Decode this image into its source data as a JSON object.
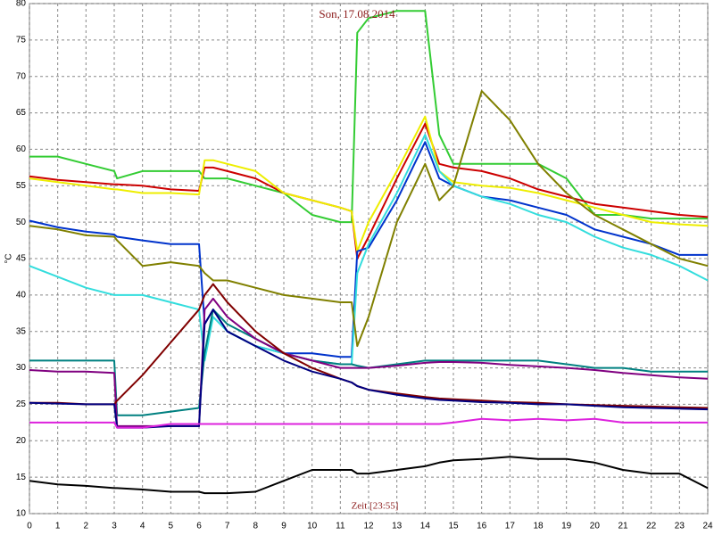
{
  "chart_data": {
    "type": "line",
    "title": "Son, 17.08.2014",
    "x_label": "Zeit [23:55]",
    "y_label": "°C",
    "grid": true,
    "xlim": [
      0,
      24
    ],
    "xticks": [
      0,
      1,
      2,
      3,
      4,
      5,
      6,
      7,
      8,
      9,
      10,
      11,
      12,
      13,
      14,
      15,
      16,
      17,
      18,
      19,
      20,
      21,
      22,
      23,
      24
    ],
    "ylim": [
      10,
      80
    ],
    "yticks": [
      10,
      15,
      20,
      25,
      30,
      35,
      40,
      45,
      50,
      55,
      60,
      65,
      70,
      75,
      80
    ],
    "x": [
      0,
      1,
      2,
      3,
      3.1,
      4,
      5,
      6,
      6.2,
      6.5,
      7,
      8,
      9,
      10,
      11,
      11.4,
      11.6,
      12,
      13,
      14,
      14.5,
      15,
      16,
      17,
      18,
      19,
      20,
      21,
      22,
      23,
      24
    ],
    "series": [
      {
        "color": "#33cc33",
        "values": [
          59,
          59,
          58,
          57,
          56,
          57,
          57,
          57,
          56,
          56,
          56,
          55,
          54,
          51,
          50,
          50,
          76,
          78,
          79,
          79,
          62,
          58,
          58,
          58,
          58,
          56,
          51,
          51,
          50.5,
          50.5,
          50.5
        ]
      },
      {
        "color": "#cc0000",
        "values": [
          56.3,
          55.8,
          55.5,
          55.2,
          55.2,
          55,
          54.5,
          54.3,
          57.5,
          57.5,
          57,
          56,
          54,
          53,
          52,
          51.5,
          45,
          48,
          56,
          63.5,
          58,
          57.5,
          57,
          56,
          54.5,
          53.5,
          52.5,
          52,
          51.5,
          51,
          50.7
        ]
      },
      {
        "color": "#eeee00",
        "values": [
          56,
          55.5,
          55,
          54.5,
          54.5,
          54,
          54,
          53.8,
          58.5,
          58.5,
          58,
          57,
          54,
          53,
          52,
          51.5,
          46,
          50,
          57,
          64.5,
          57,
          55.5,
          55,
          54.7,
          54,
          53,
          52,
          51,
          50,
          49.7,
          49.5
        ]
      },
      {
        "color": "#0033cc",
        "values": [
          50.2,
          49.3,
          48.7,
          48.3,
          48,
          47.5,
          47,
          47,
          36,
          38,
          35,
          33,
          32,
          32,
          31.5,
          31.5,
          46,
          46.5,
          53,
          61,
          56,
          55,
          53.5,
          53,
          52,
          51,
          49,
          48,
          47,
          45.5,
          45.5
        ]
      },
      {
        "color": "#33dddd",
        "values": [
          44,
          42.5,
          41,
          40,
          40,
          40,
          39,
          38,
          31,
          37,
          35,
          33,
          32,
          31,
          30.5,
          30.5,
          43,
          47,
          54,
          62,
          57,
          55,
          53.5,
          52.5,
          51,
          50,
          48,
          46.5,
          45.5,
          44,
          42
        ]
      },
      {
        "color": "#808000",
        "values": [
          49.5,
          49,
          48.2,
          48,
          47.5,
          44,
          44.5,
          44,
          43,
          42,
          42,
          41,
          40,
          39.5,
          39,
          39,
          33,
          37,
          50,
          58,
          53,
          55,
          68,
          64,
          58,
          54,
          51,
          49,
          47,
          45,
          44
        ]
      },
      {
        "color": "#008080",
        "values": [
          31,
          31,
          31,
          31,
          23.5,
          23.5,
          24,
          24.5,
          32,
          38,
          36,
          34,
          32,
          31,
          30.5,
          30.5,
          30.3,
          30,
          30.5,
          31,
          31,
          31,
          31,
          31,
          31,
          30.5,
          30,
          30,
          29.5,
          29.5,
          29.5
        ]
      },
      {
        "color": "#800080",
        "values": [
          29.7,
          29.5,
          29.5,
          29.3,
          22,
          22,
          22,
          22,
          38,
          39.5,
          37,
          34,
          32,
          31,
          30,
          30,
          30,
          30,
          30.3,
          30.7,
          30.8,
          30.8,
          30.7,
          30.4,
          30.2,
          30,
          29.7,
          29.3,
          29,
          28.7,
          28.5
        ]
      },
      {
        "color": "#800000",
        "values": [
          25.2,
          25.2,
          25,
          25,
          25.5,
          29,
          33.5,
          38,
          40,
          41.5,
          39,
          35,
          32,
          30,
          28.5,
          28,
          27.5,
          27,
          26.5,
          26,
          25.8,
          25.7,
          25.5,
          25.3,
          25.2,
          25,
          24.9,
          24.8,
          24.7,
          24.6,
          24.5
        ]
      },
      {
        "color": "#000080",
        "values": [
          25.2,
          25.1,
          25,
          25,
          21.8,
          21.8,
          22,
          22,
          36,
          38,
          35,
          33,
          31,
          29.5,
          28.5,
          28,
          27.5,
          27,
          26.3,
          25.8,
          25.6,
          25.5,
          25.3,
          25.2,
          25,
          25,
          24.8,
          24.6,
          24.5,
          24.4,
          24.3
        ]
      },
      {
        "color": "#dd22dd",
        "values": [
          22.5,
          22.5,
          22.5,
          22.5,
          21.8,
          21.8,
          22.3,
          22.3,
          22.3,
          22.3,
          22.3,
          22.3,
          22.3,
          22.3,
          22.3,
          22.3,
          22.3,
          22.3,
          22.3,
          22.3,
          22.3,
          22.5,
          23,
          22.8,
          23,
          22.8,
          23,
          22.5,
          22.5,
          22.5,
          22.5
        ]
      },
      {
        "color": "#000000",
        "values": [
          14.5,
          14,
          13.8,
          13.5,
          13.5,
          13.3,
          13,
          13,
          12.8,
          12.8,
          12.8,
          13,
          14.5,
          16,
          16,
          16,
          15.5,
          15.5,
          16,
          16.5,
          17,
          17.3,
          17.5,
          17.8,
          17.5,
          17.5,
          17,
          16,
          15.5,
          15.5,
          13.5
        ]
      }
    ]
  }
}
